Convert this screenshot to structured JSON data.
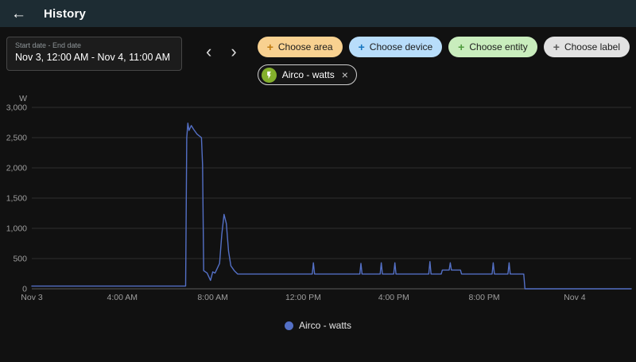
{
  "header": {
    "title": "History"
  },
  "glyphs": {
    "back": "←",
    "prev": "‹",
    "next": "›",
    "plus": "+",
    "close": "×"
  },
  "icons": {
    "selected_entity": "lightning-bolt",
    "legend_marker": "circle"
  },
  "colors": {
    "app_header": "#1d2c33",
    "background": "#111111",
    "line": "#5470c6",
    "entity_icon": "#84b02c"
  },
  "controls": {
    "date_range": {
      "label": "Start date - End date",
      "value": "Nov 3, 12:00 AM - Nov 4, 11:00 AM"
    }
  },
  "filters": [
    {
      "label": "Choose area",
      "bg": "#f8d190",
      "icon_color": "#c07c10"
    },
    {
      "label": "Choose device",
      "bg": "#b8ddfa",
      "icon_color": "#1576c0"
    },
    {
      "label": "Choose entity",
      "bg": "#c9edbd",
      "icon_color": "#4e9a3d"
    },
    {
      "label": "Choose label",
      "bg": "#e2e2e2",
      "icon_color": "#5c5c5c"
    }
  ],
  "selected_entity": {
    "label": "Airco - watts",
    "icon": "lightning-bolt",
    "icon_color": "#84b02c"
  },
  "chart_data": {
    "type": "line",
    "title": "",
    "unit": "W",
    "grid": true,
    "legend_position": "bottom",
    "x_range": [
      0,
      26.5
    ],
    "y_range": [
      0,
      3000
    ],
    "y_ticks": [
      {
        "v": 0,
        "label": "0"
      },
      {
        "v": 500,
        "label": "500"
      },
      {
        "v": 1000,
        "label": "1,000"
      },
      {
        "v": 1500,
        "label": "1,500"
      },
      {
        "v": 2000,
        "label": "2,000"
      },
      {
        "v": 2500,
        "label": "2,500"
      },
      {
        "v": 3000,
        "label": "3,000"
      }
    ],
    "x_ticks": [
      {
        "h": 0,
        "label": "Nov 3"
      },
      {
        "h": 4,
        "label": "4:00 AM"
      },
      {
        "h": 8,
        "label": "8:00 AM"
      },
      {
        "h": 12,
        "label": "12:00 PM"
      },
      {
        "h": 16,
        "label": "4:00 PM"
      },
      {
        "h": 20,
        "label": "8:00 PM"
      },
      {
        "h": 24,
        "label": "Nov 4"
      }
    ],
    "series": [
      {
        "name": "Airco - watts",
        "color": "#5470c6",
        "points": [
          [
            0,
            45
          ],
          [
            6.8,
            45
          ],
          [
            6.85,
            2500
          ],
          [
            6.9,
            2740
          ],
          [
            6.95,
            2620
          ],
          [
            7.05,
            2700
          ],
          [
            7.15,
            2640
          ],
          [
            7.3,
            2560
          ],
          [
            7.5,
            2500
          ],
          [
            7.55,
            2050
          ],
          [
            7.6,
            300
          ],
          [
            7.75,
            260
          ],
          [
            7.9,
            140
          ],
          [
            8.0,
            280
          ],
          [
            8.1,
            260
          ],
          [
            8.3,
            420
          ],
          [
            8.4,
            900
          ],
          [
            8.5,
            1230
          ],
          [
            8.6,
            1080
          ],
          [
            8.7,
            620
          ],
          [
            8.8,
            380
          ],
          [
            8.95,
            300
          ],
          [
            9.1,
            245
          ],
          [
            12.4,
            245
          ],
          [
            12.45,
            430
          ],
          [
            12.5,
            245
          ],
          [
            14.5,
            245
          ],
          [
            14.55,
            420
          ],
          [
            14.6,
            245
          ],
          [
            15.4,
            245
          ],
          [
            15.45,
            430
          ],
          [
            15.5,
            245
          ],
          [
            16.0,
            245
          ],
          [
            16.05,
            430
          ],
          [
            16.1,
            245
          ],
          [
            17.55,
            245
          ],
          [
            17.6,
            450
          ],
          [
            17.65,
            245
          ],
          [
            18.1,
            245
          ],
          [
            18.15,
            310
          ],
          [
            18.45,
            310
          ],
          [
            18.5,
            430
          ],
          [
            18.55,
            310
          ],
          [
            18.95,
            310
          ],
          [
            19.0,
            245
          ],
          [
            20.35,
            245
          ],
          [
            20.4,
            430
          ],
          [
            20.45,
            245
          ],
          [
            21.05,
            245
          ],
          [
            21.1,
            430
          ],
          [
            21.15,
            245
          ],
          [
            21.75,
            245
          ],
          [
            21.8,
            0
          ],
          [
            26.5,
            0
          ]
        ]
      }
    ]
  }
}
